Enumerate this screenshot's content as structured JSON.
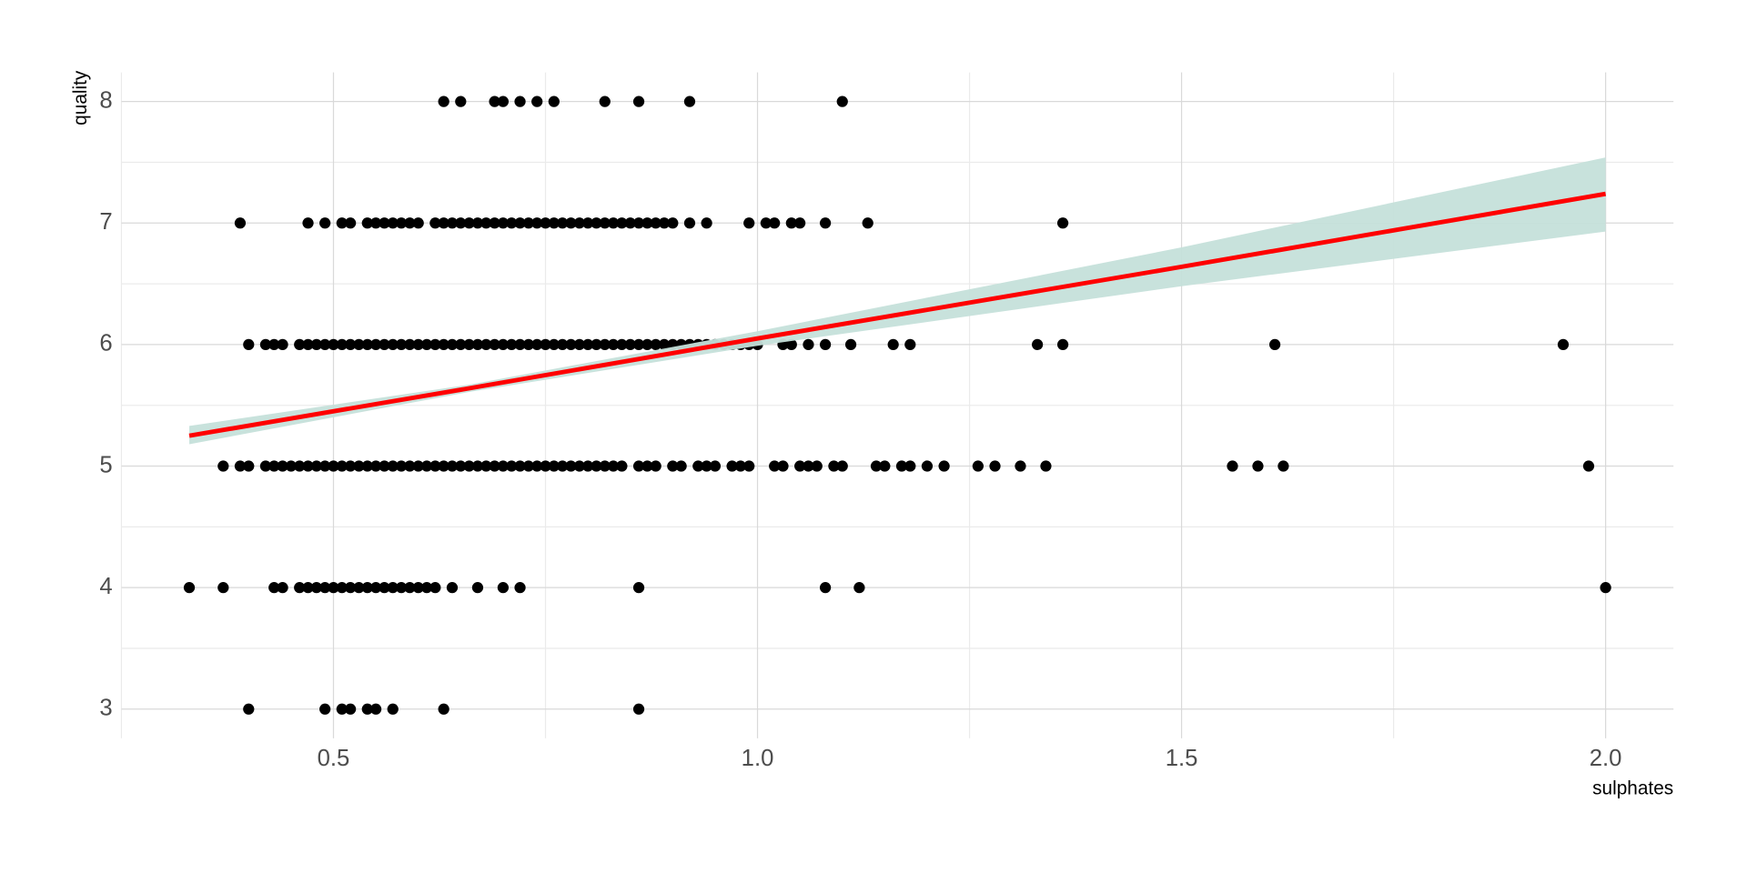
{
  "chart_data": {
    "type": "scatter",
    "x_label": "sulphates",
    "y_label": "quality",
    "xlim": [
      0.25,
      2.08
    ],
    "ylim": [
      2.76,
      8.24
    ],
    "xticks": [
      0.5,
      {
        "value": 1,
        "label": "1.0"
      },
      1.5,
      {
        "value": 2,
        "label": "2.0"
      }
    ],
    "yticks": [
      3,
      4,
      5,
      6,
      7,
      8
    ],
    "xminorticks": [
      0.25,
      0.75,
      1.25,
      1.75
    ],
    "yminorticks": [
      3.5,
      4.5,
      5.5,
      6.5,
      7.5
    ],
    "grid": true,
    "point_color": "#000000",
    "series": [
      {
        "x": [
          0.63,
          0.65,
          0.69,
          0.7,
          0.72,
          0.74,
          0.76,
          0.82,
          0.86,
          0.92,
          1.1
        ],
        "values": [
          8,
          8,
          8,
          8,
          8,
          8,
          8,
          8,
          8,
          8,
          8
        ]
      },
      {
        "x": [
          0.39,
          0.47,
          0.49,
          0.51,
          0.52,
          0.54,
          0.55,
          0.56,
          0.57,
          0.58,
          0.59,
          0.6,
          0.62,
          0.63,
          0.64,
          0.65,
          0.66,
          0.67,
          0.68,
          0.69,
          0.7,
          0.71,
          0.72,
          0.73,
          0.74,
          0.75,
          0.76,
          0.77,
          0.78,
          0.79,
          0.8,
          0.81,
          0.82,
          0.83,
          0.84,
          0.85,
          0.86,
          0.87,
          0.88,
          0.89,
          0.9,
          0.92,
          0.94,
          0.99,
          1.01,
          1.02,
          1.04,
          1.05,
          1.08,
          1.13,
          1.36
        ],
        "values": [
          7,
          7,
          7,
          7,
          7,
          7,
          7,
          7,
          7,
          7,
          7,
          7,
          7,
          7,
          7,
          7,
          7,
          7,
          7,
          7,
          7,
          7,
          7,
          7,
          7,
          7,
          7,
          7,
          7,
          7,
          7,
          7,
          7,
          7,
          7,
          7,
          7,
          7,
          7,
          7,
          7,
          7,
          7,
          7,
          7,
          7,
          7,
          7,
          7,
          7,
          7
        ]
      },
      {
        "x": [
          0.4,
          0.42,
          0.43,
          0.44,
          0.46,
          0.47,
          0.48,
          0.49,
          0.5,
          0.51,
          0.52,
          0.53,
          0.54,
          0.55,
          0.56,
          0.57,
          0.58,
          0.59,
          0.6,
          0.61,
          0.62,
          0.63,
          0.64,
          0.65,
          0.66,
          0.67,
          0.68,
          0.69,
          0.7,
          0.71,
          0.72,
          0.73,
          0.74,
          0.75,
          0.76,
          0.77,
          0.78,
          0.79,
          0.8,
          0.81,
          0.82,
          0.83,
          0.84,
          0.85,
          0.86,
          0.87,
          0.88,
          0.89,
          0.9,
          0.91,
          0.92,
          0.93,
          0.94,
          0.95,
          0.96,
          0.97,
          0.98,
          0.99,
          1.0,
          1.03,
          1.04,
          1.06,
          1.08,
          1.11,
          1.16,
          1.18,
          1.33,
          1.36,
          1.61,
          1.95
        ],
        "values": [
          6,
          6,
          6,
          6,
          6,
          6,
          6,
          6,
          6,
          6,
          6,
          6,
          6,
          6,
          6,
          6,
          6,
          6,
          6,
          6,
          6,
          6,
          6,
          6,
          6,
          6,
          6,
          6,
          6,
          6,
          6,
          6,
          6,
          6,
          6,
          6,
          6,
          6,
          6,
          6,
          6,
          6,
          6,
          6,
          6,
          6,
          6,
          6,
          6,
          6,
          6,
          6,
          6,
          6,
          6,
          6,
          6,
          6,
          6,
          6,
          6,
          6,
          6,
          6,
          6,
          6,
          6,
          6,
          6,
          6
        ]
      },
      {
        "x": [
          0.37,
          0.39,
          0.4,
          0.42,
          0.43,
          0.44,
          0.45,
          0.46,
          0.47,
          0.48,
          0.49,
          0.5,
          0.51,
          0.52,
          0.53,
          0.54,
          0.55,
          0.56,
          0.57,
          0.58,
          0.59,
          0.6,
          0.61,
          0.62,
          0.63,
          0.64,
          0.65,
          0.66,
          0.67,
          0.68,
          0.69,
          0.7,
          0.71,
          0.72,
          0.73,
          0.74,
          0.75,
          0.76,
          0.77,
          0.78,
          0.79,
          0.8,
          0.81,
          0.82,
          0.83,
          0.84,
          0.86,
          0.87,
          0.88,
          0.9,
          0.91,
          0.93,
          0.94,
          0.95,
          0.97,
          0.98,
          0.99,
          1.02,
          1.03,
          1.05,
          1.06,
          1.07,
          1.09,
          1.1,
          1.14,
          1.15,
          1.17,
          1.18,
          1.2,
          1.22,
          1.26,
          1.28,
          1.31,
          1.34,
          1.56,
          1.59,
          1.62,
          1.98
        ],
        "values": [
          5,
          5,
          5,
          5,
          5,
          5,
          5,
          5,
          5,
          5,
          5,
          5,
          5,
          5,
          5,
          5,
          5,
          5,
          5,
          5,
          5,
          5,
          5,
          5,
          5,
          5,
          5,
          5,
          5,
          5,
          5,
          5,
          5,
          5,
          5,
          5,
          5,
          5,
          5,
          5,
          5,
          5,
          5,
          5,
          5,
          5,
          5,
          5,
          5,
          5,
          5,
          5,
          5,
          5,
          5,
          5,
          5,
          5,
          5,
          5,
          5,
          5,
          5,
          5,
          5,
          5,
          5,
          5,
          5,
          5,
          5,
          5,
          5,
          5,
          5,
          5,
          5,
          5
        ]
      },
      {
        "x": [
          0.33,
          0.37,
          0.43,
          0.44,
          0.46,
          0.47,
          0.48,
          0.49,
          0.5,
          0.51,
          0.52,
          0.53,
          0.54,
          0.55,
          0.56,
          0.57,
          0.58,
          0.59,
          0.6,
          0.61,
          0.62,
          0.64,
          0.67,
          0.7,
          0.72,
          0.86,
          1.08,
          1.12,
          2.0
        ],
        "values": [
          4,
          4,
          4,
          4,
          4,
          4,
          4,
          4,
          4,
          4,
          4,
          4,
          4,
          4,
          4,
          4,
          4,
          4,
          4,
          4,
          4,
          4,
          4,
          4,
          4,
          4,
          4,
          4,
          4
        ]
      },
      {
        "x": [
          0.4,
          0.49,
          0.51,
          0.52,
          0.54,
          0.55,
          0.57,
          0.63,
          0.86
        ],
        "values": [
          3,
          3,
          3,
          3,
          3,
          3,
          3,
          3,
          3
        ]
      }
    ],
    "fit": {
      "color": "#ff0000",
      "band_color": "#c5e0da",
      "x": [
        0.33,
        0.66,
        1.0,
        1.5,
        2.0
      ],
      "y": [
        5.25,
        5.64,
        6.05,
        6.64,
        7.24
      ],
      "lower": [
        5.18,
        5.61,
        5.99,
        6.48,
        6.93
      ],
      "upper": [
        5.33,
        5.67,
        6.11,
        6.8,
        7.54
      ]
    }
  }
}
